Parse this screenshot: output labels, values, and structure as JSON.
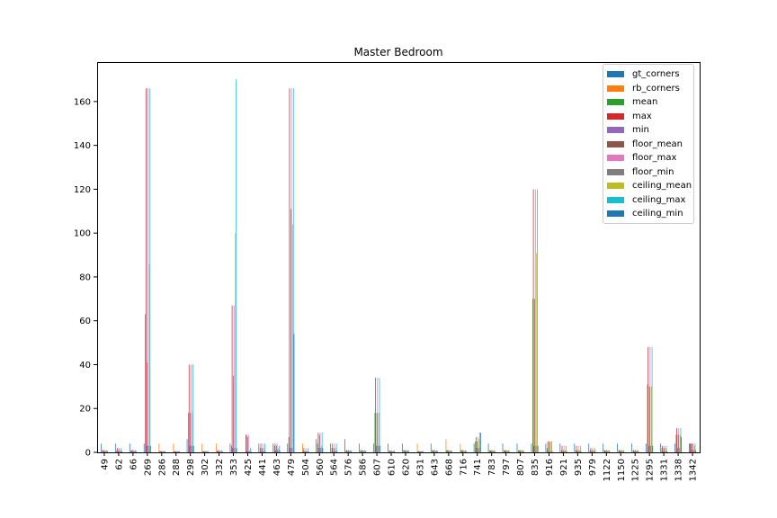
{
  "chart_data": {
    "type": "bar",
    "title": "Master Bedroom",
    "xlabel": "",
    "ylabel": "",
    "ylim": [
      0,
      178
    ],
    "yticks": [
      0,
      20,
      40,
      60,
      80,
      100,
      120,
      140,
      160
    ],
    "grid": false,
    "legend_position": "top-right",
    "categories": [
      "49",
      "62",
      "66",
      "269",
      "286",
      "288",
      "298",
      "302",
      "332",
      "353",
      "425",
      "441",
      "463",
      "479",
      "504",
      "560",
      "564",
      "576",
      "586",
      "607",
      "610",
      "620",
      "631",
      "643",
      "668",
      "716",
      "741",
      "783",
      "797",
      "807",
      "835",
      "916",
      "921",
      "935",
      "979",
      "1122",
      "1150",
      "1225",
      "1295",
      "1331",
      "1338",
      "1342"
    ],
    "series": [
      {
        "name": "gt_corners",
        "color": "#1f77b4",
        "values": [
          4,
          4,
          4,
          4,
          0,
          0,
          6,
          0,
          0,
          4,
          0,
          4,
          4,
          4,
          0,
          6,
          4,
          6,
          4,
          4,
          4,
          4,
          0,
          4,
          0,
          0,
          4,
          4,
          4,
          4,
          4,
          4,
          4,
          4,
          4,
          4,
          4,
          4,
          4,
          4,
          4,
          4
        ]
      },
      {
        "name": "rb_corners",
        "color": "#ff7f0e",
        "values": [
          0,
          0,
          0,
          0,
          4,
          4,
          0,
          4,
          4,
          0,
          0,
          0,
          0,
          0,
          4,
          0,
          0,
          0,
          0,
          0,
          0,
          0,
          4,
          0,
          6,
          4,
          0,
          0,
          0,
          0,
          0,
          0,
          0,
          0,
          0,
          0,
          0,
          0,
          0,
          0,
          0,
          4
        ]
      },
      {
        "name": "mean",
        "color": "#2ca02c",
        "values": [
          1,
          1,
          1,
          63,
          0.5,
          0.5,
          18,
          0.5,
          0.5,
          3,
          8,
          2,
          3,
          7,
          0.5,
          4,
          2,
          1,
          1,
          18,
          0.5,
          1,
          0.5,
          1,
          1,
          1,
          5,
          1,
          1,
          1,
          70,
          2,
          1,
          1,
          1,
          1,
          1,
          1,
          31,
          2,
          8,
          4
        ]
      },
      {
        "name": "max",
        "color": "#d62728",
        "values": [
          1,
          2,
          1,
          166,
          0.5,
          0.5,
          40,
          0.5,
          1,
          67,
          8,
          4,
          4,
          166,
          2,
          9,
          4,
          1,
          1,
          34,
          1,
          1,
          0.5,
          1,
          1,
          1,
          7,
          1,
          1,
          1,
          120,
          5,
          3,
          3,
          2,
          1,
          1,
          1,
          48,
          3,
          11,
          4
        ]
      },
      {
        "name": "min",
        "color": "#9467bd",
        "values": [
          0.5,
          0.5,
          0.5,
          3,
          0.5,
          0.5,
          3,
          0.5,
          0.5,
          2,
          0.5,
          0.5,
          1,
          2,
          0.5,
          2,
          0.5,
          0.5,
          0.5,
          3,
          0.5,
          0.5,
          0.5,
          0.5,
          0.5,
          0.5,
          2,
          0.5,
          0.5,
          0.5,
          3,
          0.5,
          0.5,
          0.5,
          0.5,
          0.5,
          0.5,
          0.5,
          3,
          0.5,
          2,
          1
        ]
      },
      {
        "name": "floor_mean",
        "color": "#8c564b",
        "values": [
          1,
          1,
          1,
          41,
          0.5,
          0.5,
          18,
          0.5,
          0.5,
          35,
          7,
          2,
          3,
          111,
          0.5,
          8,
          2,
          1,
          1,
          18,
          0.5,
          1,
          0.5,
          1,
          1,
          1,
          5,
          1,
          1,
          1,
          70,
          5,
          1,
          1,
          1,
          1,
          1,
          1,
          30,
          2,
          8,
          4
        ]
      },
      {
        "name": "floor_max",
        "color": "#e377c2",
        "values": [
          1,
          2,
          1,
          166,
          0.5,
          0.5,
          40,
          0.5,
          1,
          67,
          8,
          4,
          4,
          166,
          2,
          9,
          4,
          1,
          1,
          34,
          1,
          1,
          0.5,
          1,
          1,
          1,
          7,
          1,
          1,
          1,
          120,
          5,
          3,
          3,
          2,
          1,
          1,
          1,
          48,
          3,
          11,
          4
        ]
      },
      {
        "name": "floor_min",
        "color": "#7f7f7f",
        "values": [
          0.5,
          0.5,
          0.5,
          3,
          0.5,
          0.5,
          3,
          0.5,
          0.5,
          2,
          0.5,
          0.5,
          1,
          2,
          0.5,
          2,
          0.5,
          0.5,
          0.5,
          3,
          0.5,
          0.5,
          0.5,
          0.5,
          0.5,
          0.5,
          2,
          0.5,
          0.5,
          0.5,
          3,
          0.5,
          0.5,
          0.5,
          0.5,
          0.5,
          0.5,
          0.5,
          3,
          0.5,
          2,
          1
        ]
      },
      {
        "name": "ceiling_mean",
        "color": "#bcbd22",
        "values": [
          1,
          1,
          1,
          86,
          0.5,
          0.5,
          18,
          0.5,
          0.5,
          100,
          1,
          2,
          2,
          104,
          0.5,
          3,
          2,
          1,
          1,
          18,
          0.5,
          1,
          0.5,
          1,
          1,
          1,
          6,
          1,
          1,
          1,
          91,
          5,
          1,
          1,
          1,
          1,
          1,
          1,
          30,
          2,
          8,
          3
        ]
      },
      {
        "name": "ceiling_max",
        "color": "#17becf",
        "values": [
          1,
          2,
          1,
          166,
          0.5,
          0.5,
          40,
          0.5,
          1,
          170,
          2,
          4,
          3,
          166,
          2,
          9,
          4,
          1,
          1,
          34,
          1,
          1,
          0.5,
          1,
          1,
          1,
          9,
          1,
          1,
          1,
          120,
          5,
          3,
          3,
          2,
          1,
          1,
          1,
          48,
          3,
          11,
          4
        ]
      },
      {
        "name": "ceiling_min",
        "color": "#1f77b4",
        "values": [
          0.5,
          0.5,
          0.5,
          3,
          0.5,
          0.5,
          3,
          0.5,
          0.5,
          2,
          0.5,
          0.5,
          1,
          54,
          0.5,
          2,
          0.5,
          0.5,
          0.5,
          3,
          0.5,
          0.5,
          0.5,
          0.5,
          0.5,
          0.5,
          9,
          0.5,
          0.5,
          0.5,
          3,
          0.5,
          0.5,
          0.5,
          0.5,
          0.5,
          0.5,
          0.5,
          3,
          0.5,
          7,
          1
        ]
      }
    ]
  }
}
